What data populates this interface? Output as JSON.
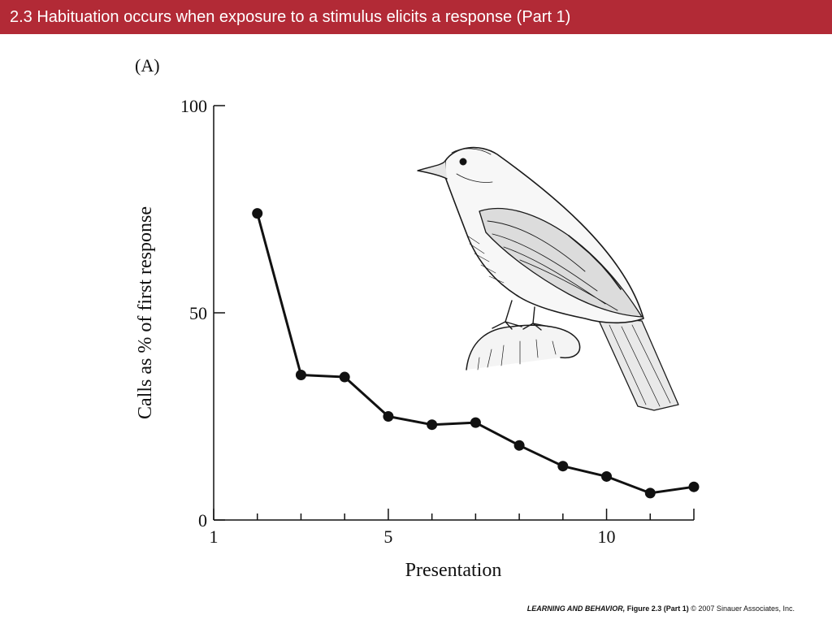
{
  "slide": {
    "title": "2.3  Habituation occurs when exposure to a stimulus elicits a response (Part 1)",
    "footer_book": "LEARNING AND BEHAVIOR,",
    "footer_figure": " Figure 2.3 (Part 1)",
    "footer_copyright": "  © 2007 Sinauer Associates, Inc."
  },
  "colors": {
    "title_bar": "#b22a36",
    "title_text": "#ffffff",
    "ink": "#111111"
  },
  "illustration": {
    "icon": "bird-illustration-icon"
  },
  "chart_data": {
    "type": "line",
    "panel_label": "(A)",
    "xlabel": "Presentation",
    "ylabel": "Calls as % of first response",
    "xlim": [
      1,
      12
    ],
    "ylim": [
      0,
      100
    ],
    "x_tick_labels": [
      "1",
      "5",
      "10"
    ],
    "y_tick_labels": [
      "0",
      "50",
      "100"
    ],
    "grid": false,
    "series": [
      {
        "x": [
          2,
          3,
          4,
          5,
          6,
          7,
          8,
          9,
          10,
          11,
          12
        ],
        "y": [
          74,
          35,
          34.5,
          25,
          23,
          23.5,
          18,
          13,
          10.5,
          6.5,
          8
        ]
      }
    ]
  }
}
